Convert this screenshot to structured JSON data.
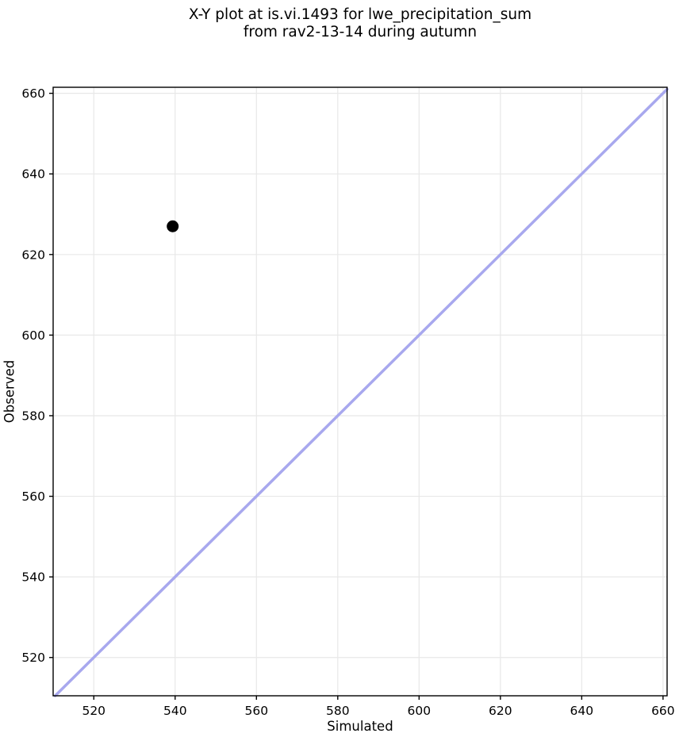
{
  "chart_data": {
    "type": "scatter",
    "title": "X-Y plot at is.vi.1493 for lwe_precipitation_sum\nfrom rav2-13-14 during autumn",
    "title_lines": [
      "X-Y plot at is.vi.1493 for lwe_precipitation_sum",
      "from rav2-13-14 during autumn"
    ],
    "xlabel": "Simulated",
    "ylabel": "Observed",
    "xlim": [
      510,
      661
    ],
    "ylim": [
      510.5,
      661.5
    ],
    "xticks": [
      520,
      540,
      560,
      580,
      600,
      620,
      640,
      660
    ],
    "yticks": [
      520,
      540,
      560,
      580,
      600,
      620,
      640,
      660
    ],
    "grid": true,
    "legend": false,
    "identity_line": true,
    "points": [
      {
        "x": 539.4,
        "y": 627
      }
    ],
    "colors": {
      "point": "#000000",
      "identity_line": "#a8a8ee",
      "grid": "#e8e8e8",
      "spine": "#000000",
      "background": "#ffffff"
    }
  }
}
